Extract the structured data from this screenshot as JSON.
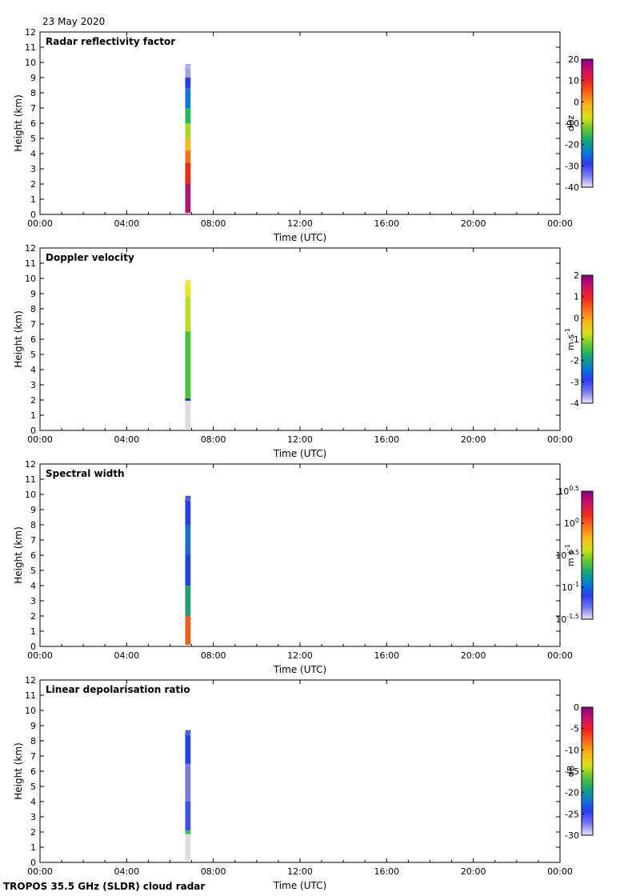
{
  "date_label": "23 May 2020",
  "footer": "TROPOS 35.5 GHz (SLDR) cloud radar",
  "chart_data": [
    {
      "type": "heatmap",
      "title": "Radar reflectivity factor",
      "xlabel": "Time (UTC)",
      "ylabel": "Height (km)",
      "x_ticks": [
        "00:00",
        "04:00",
        "08:00",
        "12:00",
        "16:00",
        "20:00",
        "00:00"
      ],
      "x_range_hours": [
        0,
        24
      ],
      "y_ticks": [
        0,
        1,
        2,
        3,
        4,
        5,
        6,
        7,
        8,
        9,
        10,
        11,
        12
      ],
      "ylim": [
        0,
        12
      ],
      "colorbar": {
        "label": "dBz",
        "ticks": [
          "20",
          "10",
          "0",
          "-10",
          "-20",
          "-30",
          "-40"
        ],
        "range": [
          -40,
          20
        ]
      },
      "data_extent": {
        "time_start_hours": 6.7,
        "time_end_hours": 6.95,
        "height_bottom_km": 0.1,
        "height_top_km": 9.9
      },
      "profile": [
        {
          "h0": 9.0,
          "h1": 9.9,
          "color": "#9fa0f0"
        },
        {
          "h0": 8.3,
          "h1": 9.0,
          "color": "#2b3bf0"
        },
        {
          "h0": 7.0,
          "h1": 8.3,
          "color": "#0a7ad8"
        },
        {
          "h0": 6.0,
          "h1": 7.0,
          "color": "#20b858"
        },
        {
          "h0": 5.0,
          "h1": 6.0,
          "color": "#a8d820"
        },
        {
          "h0": 4.2,
          "h1": 5.0,
          "color": "#f8b818"
        },
        {
          "h0": 3.4,
          "h1": 4.2,
          "color": "#f87018"
        },
        {
          "h0": 2.0,
          "h1": 3.4,
          "color": "#f02818"
        },
        {
          "h0": 0.1,
          "h1": 2.0,
          "color": "#b01870"
        }
      ]
    },
    {
      "type": "heatmap",
      "title": "Doppler velocity",
      "xlabel": "Time (UTC)",
      "ylabel": "Height (km)",
      "x_ticks": [
        "00:00",
        "04:00",
        "08:00",
        "12:00",
        "16:00",
        "20:00",
        "00:00"
      ],
      "x_range_hours": [
        0,
        24
      ],
      "y_ticks": [
        0,
        1,
        2,
        3,
        4,
        5,
        6,
        7,
        8,
        9,
        10,
        11,
        12
      ],
      "ylim": [
        0,
        12
      ],
      "colorbar": {
        "label": "m s-1",
        "ticks": [
          "2",
          "1",
          "0",
          "-1",
          "-2",
          "-3",
          "-4"
        ],
        "range": [
          -4,
          2
        ]
      },
      "data_extent": {
        "time_start_hours": 6.7,
        "time_end_hours": 6.95,
        "height_bottom_km": 0.1,
        "height_top_km": 9.9
      },
      "profile": [
        {
          "h0": 8.8,
          "h1": 9.9,
          "color": "#e8e818"
        },
        {
          "h0": 6.5,
          "h1": 8.8,
          "color": "#b8e020"
        },
        {
          "h0": 2.1,
          "h1": 6.5,
          "color": "#40c830"
        },
        {
          "h0": 1.95,
          "h1": 2.1,
          "color": "#10408a"
        },
        {
          "h0": 0.1,
          "h1": 1.95,
          "color": "#dddddd"
        }
      ]
    },
    {
      "type": "heatmap",
      "title": "Spectral width",
      "xlabel": "Time (UTC)",
      "ylabel": "Height (km)",
      "x_ticks": [
        "00:00",
        "04:00",
        "08:00",
        "12:00",
        "16:00",
        "20:00",
        "00:00"
      ],
      "x_range_hours": [
        0,
        24
      ],
      "y_ticks": [
        0,
        1,
        2,
        3,
        4,
        5,
        6,
        7,
        8,
        9,
        10,
        11,
        12
      ],
      "ylim": [
        0,
        12
      ],
      "colorbar": {
        "label": "m s-1",
        "log_scale": true,
        "ticks": [
          "10^0.5",
          "10^0",
          "10^-0.5",
          "10^-1",
          "10^-1.5"
        ],
        "range_exponent": [
          -1.5,
          0.5
        ]
      },
      "data_extent": {
        "time_start_hours": 6.7,
        "time_end_hours": 6.95,
        "height_bottom_km": 0.1,
        "height_top_km": 9.9
      },
      "profile": [
        {
          "h0": 8.0,
          "h1": 9.9,
          "color": "#2a3ae8"
        },
        {
          "h0": 6.0,
          "h1": 8.0,
          "color": "#1a6ad0"
        },
        {
          "h0": 4.0,
          "h1": 6.0,
          "color": "#2040e0"
        },
        {
          "h0": 2.0,
          "h1": 4.0,
          "color": "#20a070"
        },
        {
          "h0": 0.1,
          "h1": 2.0,
          "color": "#f06018"
        }
      ]
    },
    {
      "type": "heatmap",
      "title": "Linear depolarisation ratio",
      "xlabel": "Time (UTC)",
      "ylabel": "Height (km)",
      "x_ticks": [
        "00:00",
        "04:00",
        "08:00",
        "12:00",
        "16:00",
        "20:00",
        "00:00"
      ],
      "x_range_hours": [
        0,
        24
      ],
      "y_ticks": [
        0,
        1,
        2,
        3,
        4,
        5,
        6,
        7,
        8,
        9,
        10,
        11,
        12
      ],
      "ylim": [
        0,
        12
      ],
      "colorbar": {
        "label": "dB",
        "ticks": [
          "0",
          "-5",
          "-10",
          "-15",
          "-20",
          "-25",
          "-30"
        ],
        "range": [
          -30,
          0
        ]
      },
      "data_extent": {
        "time_start_hours": 6.7,
        "time_end_hours": 6.95,
        "height_bottom_km": 0.1,
        "height_top_km": 8.7
      },
      "profile": [
        {
          "h0": 6.5,
          "h1": 8.7,
          "color": "#2040f0"
        },
        {
          "h0": 4.0,
          "h1": 6.5,
          "color": "#7878e8"
        },
        {
          "h0": 2.1,
          "h1": 4.0,
          "color": "#4050e8"
        },
        {
          "h0": 1.85,
          "h1": 2.1,
          "color": "#40c040"
        },
        {
          "h0": 0.1,
          "h1": 1.85,
          "color": "#dddddd"
        }
      ]
    }
  ]
}
